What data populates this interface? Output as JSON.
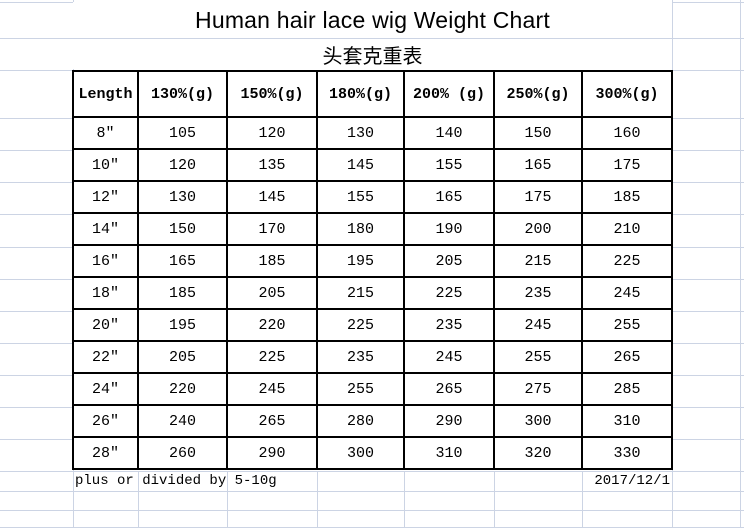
{
  "title": "Human hair lace wig Weight Chart",
  "subtitle": "头套克重表",
  "footer": {
    "note": "plus or divided by 5-10g",
    "date": "2017/12/1"
  },
  "colors": {
    "gridline": "#ccd4e4",
    "table_border": "#000000",
    "text": "#000000",
    "background": "#ffffff"
  },
  "chart_data": {
    "type": "table",
    "title": "Human hair lace wig Weight Chart",
    "subtitle": "头套克重表",
    "columns": [
      "Length",
      "130%(g)",
      "150%(g)",
      "180%(g)",
      "200% (g)",
      "250%(g)",
      "300%(g)"
    ],
    "categories": [
      "8″",
      "10″",
      "12″",
      "14″",
      "16″",
      "18″",
      "20″",
      "22″",
      "24″",
      "26″",
      "28″"
    ],
    "series": [
      {
        "name": "130%(g)",
        "values": [
          105,
          120,
          130,
          150,
          165,
          185,
          195,
          205,
          220,
          240,
          260
        ]
      },
      {
        "name": "150%(g)",
        "values": [
          120,
          135,
          145,
          170,
          185,
          205,
          220,
          225,
          245,
          265,
          290
        ]
      },
      {
        "name": "180%(g)",
        "values": [
          130,
          145,
          155,
          180,
          195,
          215,
          225,
          235,
          255,
          280,
          300
        ]
      },
      {
        "name": "200% (g)",
        "values": [
          140,
          155,
          165,
          190,
          205,
          225,
          235,
          245,
          265,
          290,
          310
        ]
      },
      {
        "name": "250%(g)",
        "values": [
          150,
          165,
          175,
          200,
          215,
          235,
          245,
          255,
          275,
          300,
          320
        ]
      },
      {
        "name": "300%(g)",
        "values": [
          160,
          175,
          185,
          210,
          225,
          245,
          255,
          265,
          285,
          310,
          330
        ]
      }
    ],
    "footnote": "plus or divided by 5-10g",
    "date": "2017/12/1",
    "layout_hints": "white spreadsheet background with light blue gridlines; table drawn with black borders; title and subtitle in merged cells above; footnote bottom-left, date bottom-right"
  }
}
